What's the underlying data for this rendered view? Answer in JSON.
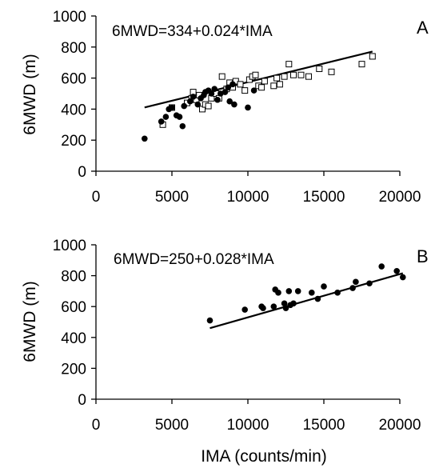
{
  "chart_data": [
    {
      "type": "scatter",
      "panel_label": "A",
      "equation": "6MWD=334+0.024*IMA",
      "ylabel": "6MWD (m)",
      "xlabel": "",
      "xlim": [
        0,
        20000
      ],
      "ylim": [
        0,
        1000
      ],
      "x_ticks": [
        "0",
        "5000",
        "10000",
        "15000",
        "20000"
      ],
      "y_ticks": [
        "0",
        "200",
        "400",
        "600",
        "800",
        "1000"
      ],
      "grid": false,
      "colors": {
        "filled": "#000000",
        "open": "#ffffff",
        "line": "#000000"
      },
      "series": [
        {
          "marker": "filled-circle",
          "points": [
            [
              3200,
              210
            ],
            [
              4300,
              320
            ],
            [
              4600,
              350
            ],
            [
              4800,
              400
            ],
            [
              5000,
              410
            ],
            [
              5300,
              360
            ],
            [
              5500,
              350
            ],
            [
              5700,
              290
            ],
            [
              5800,
              420
            ],
            [
              6200,
              450
            ],
            [
              6400,
              480
            ],
            [
              6700,
              430
            ],
            [
              6900,
              470
            ],
            [
              7100,
              490
            ],
            [
              7200,
              510
            ],
            [
              7400,
              520
            ],
            [
              7600,
              500
            ],
            [
              7800,
              530
            ],
            [
              8000,
              460
            ],
            [
              8200,
              500
            ],
            [
              8500,
              510
            ],
            [
              8700,
              540
            ],
            [
              8800,
              450
            ],
            [
              9000,
              560
            ],
            [
              9100,
              430
            ],
            [
              10000,
              410
            ],
            [
              10400,
              520
            ]
          ]
        },
        {
          "marker": "open-square",
          "points": [
            [
              4400,
              300
            ],
            [
              5000,
              410
            ],
            [
              6000,
              440
            ],
            [
              6300,
              470
            ],
            [
              6400,
              510
            ],
            [
              6600,
              460
            ],
            [
              6800,
              490
            ],
            [
              7000,
              400
            ],
            [
              7200,
              430
            ],
            [
              7400,
              420
            ],
            [
              7600,
              470
            ],
            [
              7900,
              500
            ],
            [
              8100,
              470
            ],
            [
              8300,
              610
            ],
            [
              8600,
              530
            ],
            [
              8800,
              570
            ],
            [
              9000,
              540
            ],
            [
              9200,
              580
            ],
            [
              9500,
              560
            ],
            [
              9800,
              520
            ],
            [
              10100,
              590
            ],
            [
              10300,
              610
            ],
            [
              10500,
              620
            ],
            [
              10700,
              550
            ],
            [
              10900,
              540
            ],
            [
              11100,
              580
            ],
            [
              11700,
              550
            ],
            [
              11900,
              600
            ],
            [
              12100,
              560
            ],
            [
              12400,
              610
            ],
            [
              12700,
              690
            ],
            [
              13000,
              620
            ],
            [
              13500,
              620
            ],
            [
              14000,
              610
            ],
            [
              14700,
              660
            ],
            [
              15500,
              640
            ],
            [
              17500,
              690
            ],
            [
              18200,
              740
            ]
          ]
        }
      ],
      "fit": {
        "intercept": 334,
        "slope": 0.024,
        "x_range": [
          3200,
          18200
        ]
      }
    },
    {
      "type": "scatter",
      "panel_label": "B",
      "equation": "6MWD=250+0.028*IMA",
      "ylabel": "6MWD (m)",
      "xlabel": "IMA (counts/min)",
      "xlim": [
        0,
        20000
      ],
      "ylim": [
        0,
        1000
      ],
      "x_ticks": [
        "0",
        "5000",
        "10000",
        "15000",
        "20000"
      ],
      "y_ticks": [
        "0",
        "200",
        "400",
        "600",
        "800",
        "1000"
      ],
      "grid": false,
      "colors": {
        "filled": "#000000",
        "line": "#000000"
      },
      "series": [
        {
          "marker": "filled-circle",
          "points": [
            [
              7500,
              510
            ],
            [
              9800,
              580
            ],
            [
              10900,
              600
            ],
            [
              11000,
              590
            ],
            [
              11700,
              600
            ],
            [
              11800,
              710
            ],
            [
              12000,
              690
            ],
            [
              12400,
              620
            ],
            [
              12500,
              590
            ],
            [
              12700,
              700
            ],
            [
              12800,
              610
            ],
            [
              13000,
              620
            ],
            [
              13300,
              700
            ],
            [
              14200,
              690
            ],
            [
              14600,
              650
            ],
            [
              15000,
              730
            ],
            [
              15900,
              690
            ],
            [
              16900,
              720
            ],
            [
              17100,
              760
            ],
            [
              18000,
              750
            ],
            [
              18800,
              860
            ],
            [
              19800,
              830
            ],
            [
              20200,
              790
            ]
          ]
        }
      ],
      "fit": {
        "intercept": 250,
        "slope": 0.028,
        "x_range": [
          7500,
          20200
        ]
      }
    }
  ]
}
